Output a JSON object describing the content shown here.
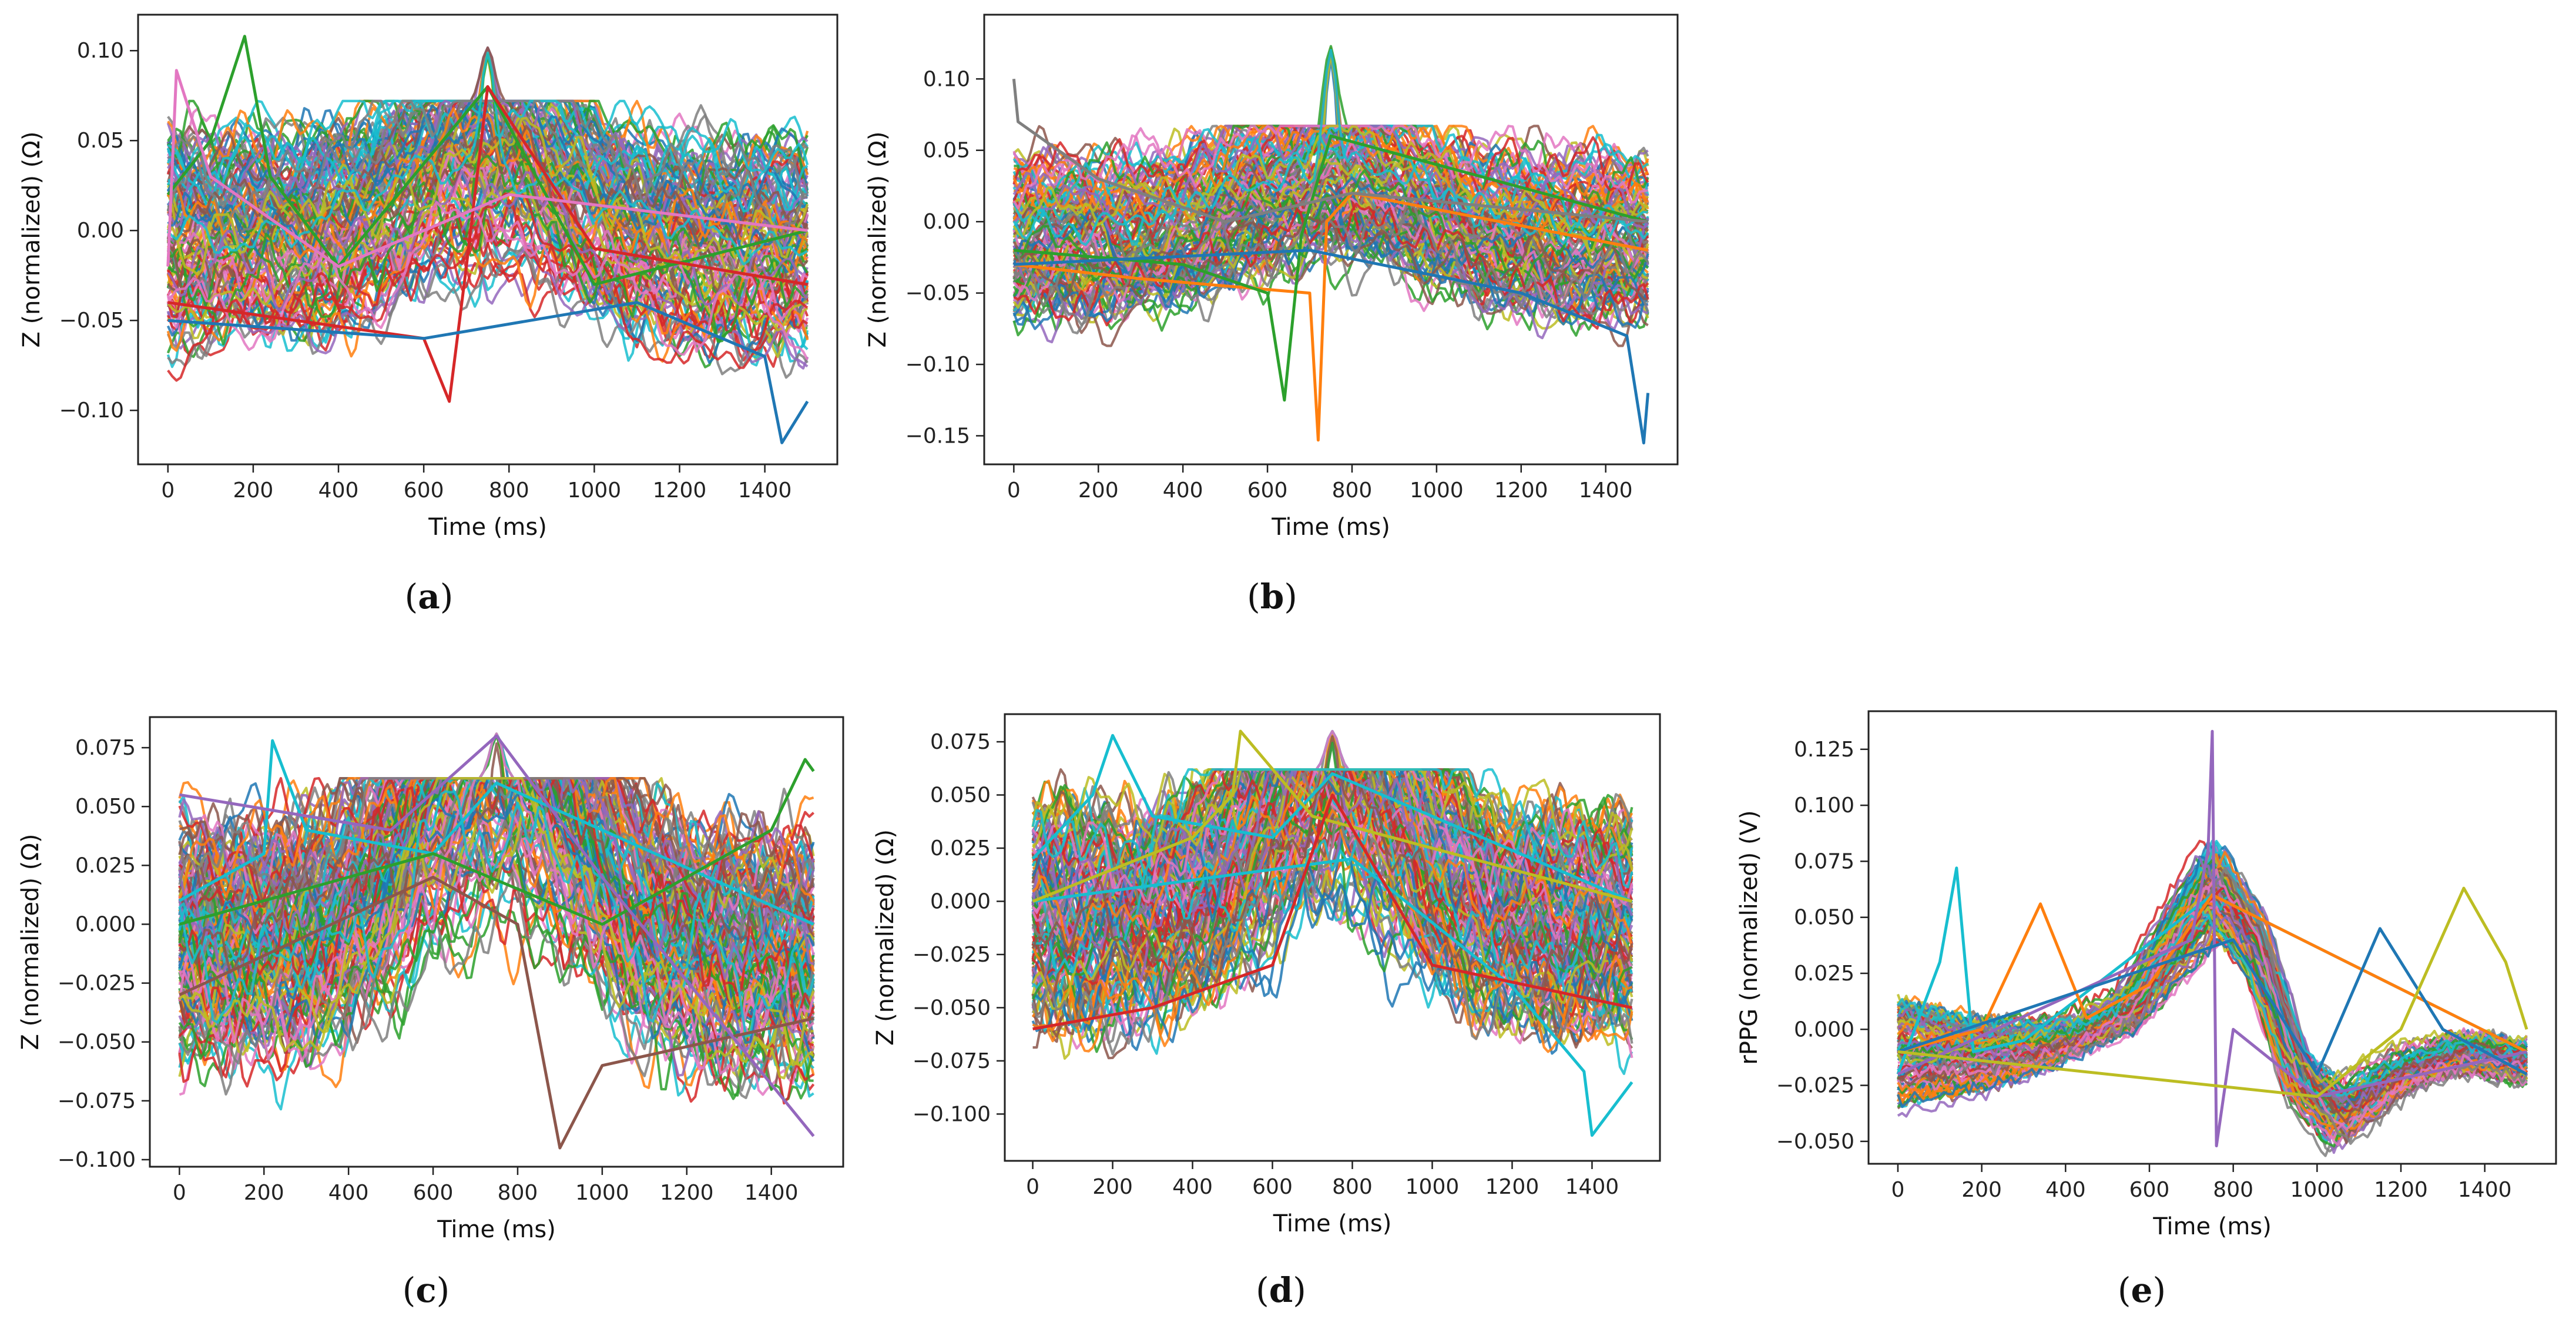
{
  "palette": [
    "#1f77b4",
    "#ff7f0e",
    "#2ca02c",
    "#d62728",
    "#9467bd",
    "#8c564b",
    "#e377c2",
    "#7f7f7f",
    "#bcbd22",
    "#17becf"
  ],
  "chart_data": [
    {
      "id": "a",
      "caption": "a",
      "type": "line",
      "xlabel": "Time (ms)",
      "ylabel": "Z (normalized) (Ω)",
      "xlim": [
        -70,
        1570
      ],
      "ylim": [
        -0.13,
        0.12
      ],
      "xticks": [
        0,
        200,
        400,
        600,
        800,
        1000,
        1200,
        1400
      ],
      "xtick_labels": [
        "0",
        "200",
        "400",
        "600",
        "800",
        "1000",
        "1200",
        "1400"
      ],
      "yticks": [
        -0.1,
        -0.05,
        0.0,
        0.05,
        0.1
      ],
      "ytick_labels": [
        "−0.10",
        "−0.05",
        "0.00",
        "0.05",
        "0.10"
      ],
      "band": {
        "low": -0.075,
        "high": 0.06,
        "start_center": 0.0,
        "peak_center": 0.015,
        "end_center": -0.01
      },
      "n_series": 120,
      "peak": {
        "x": 750,
        "y": 0.105
      },
      "outliers": [
        {
          "x": [
            0,
            100,
            180,
            240,
            400,
            750,
            1000,
            1500
          ],
          "y": [
            0.02,
            0.05,
            0.108,
            0.03,
            -0.02,
            0.08,
            -0.03,
            0.0
          ],
          "color": "#2ca02c"
        },
        {
          "x": [
            0,
            300,
            600,
            660,
            700,
            750,
            1000,
            1500
          ],
          "y": [
            -0.04,
            -0.05,
            -0.06,
            -0.095,
            -0.02,
            0.08,
            -0.01,
            -0.03
          ],
          "color": "#d62728"
        },
        {
          "x": [
            0,
            600,
            1100,
            1400,
            1440,
            1500
          ],
          "y": [
            -0.05,
            -0.06,
            -0.04,
            -0.07,
            -0.118,
            -0.095
          ],
          "color": "#1f77b4"
        },
        {
          "x": [
            0,
            20,
            100,
            400,
            800,
            1500
          ],
          "y": [
            -0.02,
            0.089,
            0.03,
            -0.02,
            0.02,
            0.0
          ],
          "color": "#e377c2"
        }
      ]
    },
    {
      "id": "b",
      "caption": "b",
      "type": "line",
      "xlabel": "Time (ms)",
      "ylabel": "Z (normalized) (Ω)",
      "xlim": [
        -70,
        1570
      ],
      "ylim": [
        -0.17,
        0.145
      ],
      "xticks": [
        0,
        200,
        400,
        600,
        800,
        1000,
        1200,
        1400
      ],
      "xtick_labels": [
        "0",
        "200",
        "400",
        "600",
        "800",
        "1000",
        "1200",
        "1400"
      ],
      "yticks": [
        -0.15,
        -0.1,
        -0.05,
        0.0,
        0.05,
        0.1
      ],
      "ytick_labels": [
        "−0.15",
        "−0.10",
        "−0.05",
        "0.00",
        "0.05",
        "0.10"
      ],
      "band": {
        "low": -0.075,
        "high": 0.055,
        "start_center": -0.01,
        "peak_center": 0.01,
        "end_center": -0.01
      },
      "n_series": 120,
      "peak": {
        "x": 750,
        "y": 0.13
      },
      "outliers": [
        {
          "x": [
            0,
            300,
            700,
            720,
            740,
            800,
            1500
          ],
          "y": [
            -0.03,
            -0.04,
            -0.05,
            -0.153,
            0.0,
            0.02,
            -0.02
          ],
          "color": "#ff7f0e"
        },
        {
          "x": [
            0,
            400,
            600,
            640,
            680,
            750,
            1500
          ],
          "y": [
            -0.02,
            -0.03,
            -0.05,
            -0.125,
            -0.01,
            0.06,
            0.0
          ],
          "color": "#2ca02c"
        },
        {
          "x": [
            0,
            700,
            1200,
            1450,
            1490,
            1500
          ],
          "y": [
            -0.03,
            -0.02,
            -0.05,
            -0.08,
            -0.155,
            -0.12
          ],
          "color": "#1f77b4"
        },
        {
          "x": [
            0,
            10,
            200,
            500,
            800,
            1500
          ],
          "y": [
            0.1,
            0.07,
            0.03,
            0.0,
            0.02,
            0.0
          ],
          "color": "#7f7f7f"
        }
      ]
    },
    {
      "id": "c",
      "caption": "c",
      "type": "line",
      "xlabel": "Time (ms)",
      "ylabel": "Z (normalized) (Ω)",
      "xlim": [
        -70,
        1570
      ],
      "ylim": [
        -0.103,
        0.088
      ],
      "xticks": [
        0,
        200,
        400,
        600,
        800,
        1000,
        1200,
        1400
      ],
      "xtick_labels": [
        "0",
        "200",
        "400",
        "600",
        "800",
        "1000",
        "1200",
        "1400"
      ],
      "yticks": [
        -0.1,
        -0.075,
        -0.05,
        -0.025,
        0.0,
        0.025,
        0.05,
        0.075
      ],
      "ytick_labels": [
        "−0.100",
        "−0.075",
        "−0.050",
        "−0.025",
        "0.000",
        "0.025",
        "0.050",
        "0.075"
      ],
      "band": {
        "low": -0.07,
        "high": 0.05,
        "start_center": -0.01,
        "peak_center": 0.045,
        "end_center": -0.02
      },
      "n_series": 140,
      "peak": {
        "x": 750,
        "y": 0.083
      },
      "outliers": [
        {
          "x": [
            0,
            200,
            220,
            300,
            600,
            750,
            1500
          ],
          "y": [
            0.01,
            0.03,
            0.078,
            0.04,
            0.03,
            0.06,
            0.0
          ],
          "color": "#17becf"
        },
        {
          "x": [
            0,
            600,
            800,
            900,
            1000,
            1500
          ],
          "y": [
            -0.03,
            0.02,
            0.0,
            -0.095,
            -0.06,
            -0.04
          ],
          "color": "#8c564b"
        },
        {
          "x": [
            0,
            600,
            1000,
            1400,
            1480,
            1500
          ],
          "y": [
            0.0,
            0.03,
            0.0,
            0.04,
            0.07,
            0.065
          ],
          "color": "#2ca02c"
        },
        {
          "x": [
            0,
            500,
            750,
            1000,
            1500
          ],
          "y": [
            0.055,
            0.04,
            0.08,
            0.02,
            -0.09
          ],
          "color": "#9467bd"
        }
      ]
    },
    {
      "id": "d",
      "caption": "d",
      "type": "line",
      "xlabel": "Time (ms)",
      "ylabel": "Z (normalized) (Ω)",
      "xlim": [
        -70,
        1570
      ],
      "ylim": [
        -0.122,
        0.088
      ],
      "xticks": [
        0,
        200,
        400,
        600,
        800,
        1000,
        1200,
        1400
      ],
      "xtick_labels": [
        "0",
        "200",
        "400",
        "600",
        "800",
        "1000",
        "1200",
        "1400"
      ],
      "yticks": [
        -0.1,
        -0.075,
        -0.05,
        -0.025,
        0.0,
        0.025,
        0.05,
        0.075
      ],
      "ytick_labels": [
        "−0.100",
        "−0.075",
        "−0.050",
        "−0.025",
        "0.000",
        "0.025",
        "0.050",
        "0.075"
      ],
      "band": {
        "low": -0.07,
        "high": 0.05,
        "start_center": -0.01,
        "peak_center": 0.03,
        "end_center": -0.015
      },
      "n_series": 140,
      "peak": {
        "x": 750,
        "y": 0.082
      },
      "outliers": [
        {
          "x": [
            0,
            150,
            200,
            300,
            600,
            750,
            1500
          ],
          "y": [
            0.02,
            0.05,
            0.078,
            0.04,
            0.03,
            0.06,
            0.0
          ],
          "color": "#17becf"
        },
        {
          "x": [
            0,
            800,
            1200,
            1380,
            1400,
            1500
          ],
          "y": [
            0.0,
            0.02,
            -0.04,
            -0.08,
            -0.11,
            -0.085
          ],
          "color": "#17becf"
        },
        {
          "x": [
            0,
            400,
            500,
            520,
            700,
            1500
          ],
          "y": [
            0.0,
            0.03,
            0.05,
            0.08,
            0.04,
            0.0
          ],
          "color": "#bcbd22"
        },
        {
          "x": [
            0,
            300,
            600,
            750,
            1000,
            1500
          ],
          "y": [
            -0.06,
            -0.05,
            -0.03,
            0.05,
            -0.03,
            -0.05
          ],
          "color": "#d62728"
        }
      ]
    },
    {
      "id": "e",
      "caption": "e",
      "type": "line",
      "xlabel": "Time (ms)",
      "ylabel": "rPPG (normalized) (V)",
      "xlim": [
        -70,
        1570
      ],
      "ylim": [
        -0.06,
        0.142
      ],
      "xticks": [
        0,
        200,
        400,
        600,
        800,
        1000,
        1200,
        1400
      ],
      "xtick_labels": [
        "0",
        "200",
        "400",
        "600",
        "800",
        "1000",
        "1200",
        "1400"
      ],
      "yticks": [
        -0.05,
        -0.025,
        0.0,
        0.025,
        0.05,
        0.075,
        0.1,
        0.125
      ],
      "ytick_labels": [
        "−0.050",
        "−0.025",
        "0.000",
        "0.025",
        "0.050",
        "0.075",
        "0.100",
        "0.125"
      ],
      "template": {
        "x": [
          0,
          200,
          400,
          550,
          650,
          750,
          850,
          950,
          1050,
          1200,
          1350,
          1500
        ],
        "y": [
          -0.01,
          -0.012,
          -0.005,
          0.01,
          0.04,
          0.068,
          0.04,
          -0.02,
          -0.04,
          -0.02,
          -0.01,
          -0.015
        ]
      },
      "n_series": 110,
      "outliers": [
        {
          "x": [
            0,
            100,
            140,
            180,
            300,
            750,
            1500
          ],
          "y": [
            -0.02,
            0.03,
            0.072,
            -0.01,
            -0.005,
            0.06,
            -0.01
          ],
          "color": "#17becf"
        },
        {
          "x": [
            0,
            200,
            340,
            450,
            600,
            750,
            1500
          ],
          "y": [
            -0.01,
            0.0,
            0.056,
            0.005,
            0.02,
            0.06,
            -0.01
          ],
          "color": "#ff7f0e"
        },
        {
          "x": [
            0,
            700,
            740,
            750,
            760,
            800,
            1000,
            1500
          ],
          "y": [
            -0.02,
            0.04,
            0.08,
            0.133,
            -0.052,
            0.0,
            -0.03,
            -0.01
          ],
          "color": "#9467bd"
        },
        {
          "x": [
            0,
            800,
            1000,
            1150,
            1300,
            1500
          ],
          "y": [
            -0.01,
            0.04,
            -0.02,
            0.045,
            0.0,
            -0.02
          ],
          "color": "#1f77b4"
        },
        {
          "x": [
            0,
            1000,
            1200,
            1350,
            1450,
            1500
          ],
          "y": [
            -0.01,
            -0.03,
            0.0,
            0.063,
            0.03,
            0.0
          ],
          "color": "#bcbd22"
        }
      ]
    }
  ]
}
